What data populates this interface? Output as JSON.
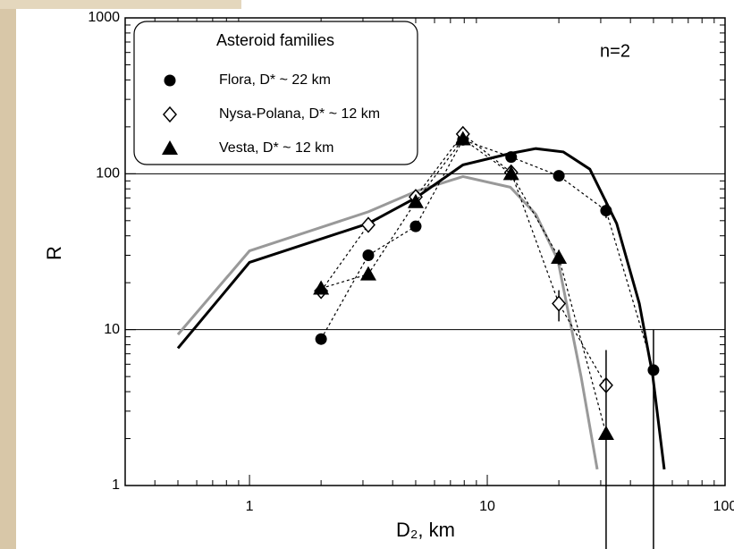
{
  "chart_data": {
    "type": "scatter",
    "x_label": "D₂, km",
    "y_label": "R",
    "legend_title": "Asteroid families",
    "annotation": "n=2",
    "log_x": true,
    "log_y": true,
    "grid": true,
    "xlim": [
      0.3,
      100
    ],
    "xticks": [
      1,
      10,
      100
    ],
    "ylim": [
      1,
      1000
    ],
    "yticks": [
      1,
      10,
      100,
      1000
    ],
    "series": [
      {
        "name": "Flora, D* ~ 22 km",
        "marker": "circle",
        "color": "#000000",
        "x": [
          2,
          3.16,
          5,
          7.9,
          12.6,
          20,
          31.6,
          50
        ],
        "values": [
          8.7,
          30,
          46,
          165,
          128,
          97,
          58,
          5.5
        ],
        "err_low": [
          null,
          null,
          null,
          null,
          null,
          null,
          52,
          0.3
        ],
        "err_high": [
          null,
          null,
          null,
          null,
          null,
          null,
          68,
          10
        ]
      },
      {
        "name": "Nysa-Polana, D* ~ 12 km",
        "marker": "diamond",
        "color": "#000000",
        "x": [
          2,
          3.16,
          5,
          7.9,
          12.6,
          20,
          31.6
        ],
        "values": [
          17.7,
          47,
          71,
          180,
          102,
          14.7,
          4.4
        ],
        "err_low": [
          null,
          null,
          null,
          null,
          null,
          11.3,
          null
        ],
        "err_high": [
          null,
          null,
          null,
          null,
          null,
          17.9,
          null
        ]
      },
      {
        "name": "Vesta, D* ~ 12 km",
        "marker": "triangle",
        "color": "#000000",
        "x": [
          2,
          3.16,
          5,
          7.9,
          12.6,
          20,
          31.6
        ],
        "values": [
          18.4,
          22.7,
          66,
          167,
          100,
          29,
          2.15
        ],
        "err_low": [
          null,
          null,
          null,
          null,
          null,
          26,
          0.3
        ],
        "err_high": [
          null,
          null,
          null,
          null,
          null,
          32.5,
          7.4
        ]
      }
    ],
    "curves": [
      {
        "color": "#999999",
        "x": [
          0.5,
          1,
          3.16,
          5,
          7.9,
          12.5,
          16,
          19.8,
          24.8,
          29
        ],
        "values": [
          9.3,
          32,
          57,
          77,
          96,
          82,
          55,
          28,
          5,
          1.27
        ]
      },
      {
        "color": "#000000",
        "x": [
          0.5,
          1,
          3.16,
          5,
          7.9,
          12.5,
          16,
          20.9,
          27,
          35,
          43.6,
          49.6,
          55.5
        ],
        "values": [
          7.6,
          27,
          48,
          70,
          114,
          135,
          145,
          138,
          107,
          48,
          14.7,
          5.1,
          1.27
        ]
      }
    ]
  }
}
